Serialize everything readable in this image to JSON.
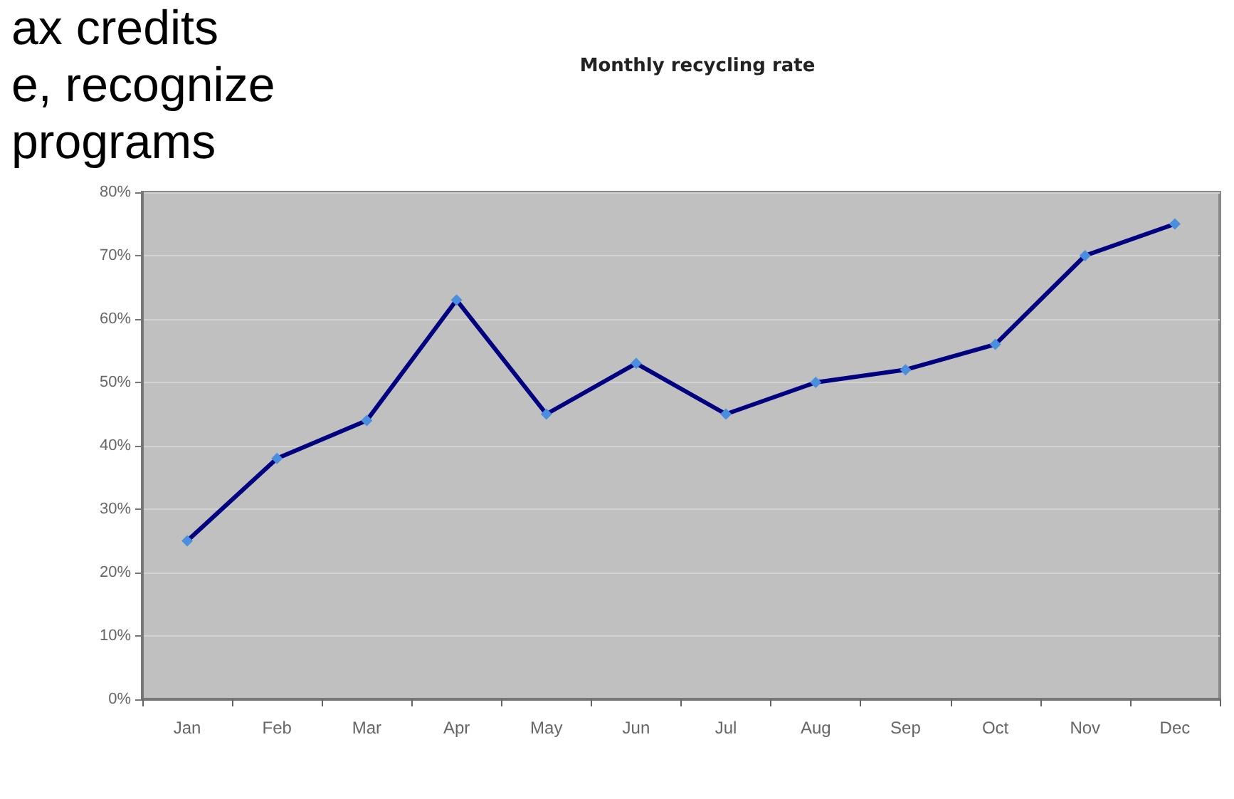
{
  "chart_data": {
    "type": "line",
    "title": "Monthly recycling rate",
    "categories": [
      "Jan",
      "Feb",
      "Mar",
      "Apr",
      "May",
      "Jun",
      "Jul",
      "Aug",
      "Sep",
      "Oct",
      "Nov",
      "Dec"
    ],
    "series": [
      {
        "color": "#000080",
        "values": [
          25,
          38,
          44,
          63,
          45,
          53,
          45,
          50,
          52,
          56,
          70,
          75
        ]
      }
    ],
    "ylim": [
      0,
      80
    ],
    "yticks": [
      {
        "value": 0,
        "label": "0%"
      },
      {
        "value": 10,
        "label": "10%"
      },
      {
        "value": 20,
        "label": "20%"
      },
      {
        "value": 30,
        "label": "30%"
      },
      {
        "value": 40,
        "label": "40%"
      },
      {
        "value": 50,
        "label": "50%"
      },
      {
        "value": 60,
        "label": "60%"
      },
      {
        "value": 70,
        "label": "70%"
      },
      {
        "value": 80,
        "label": "80%"
      }
    ],
    "grid": "y",
    "marker": "diamond",
    "line_style": "solid",
    "annotations": [
      "ax credits",
      "e, recognize",
      "programs"
    ]
  }
}
